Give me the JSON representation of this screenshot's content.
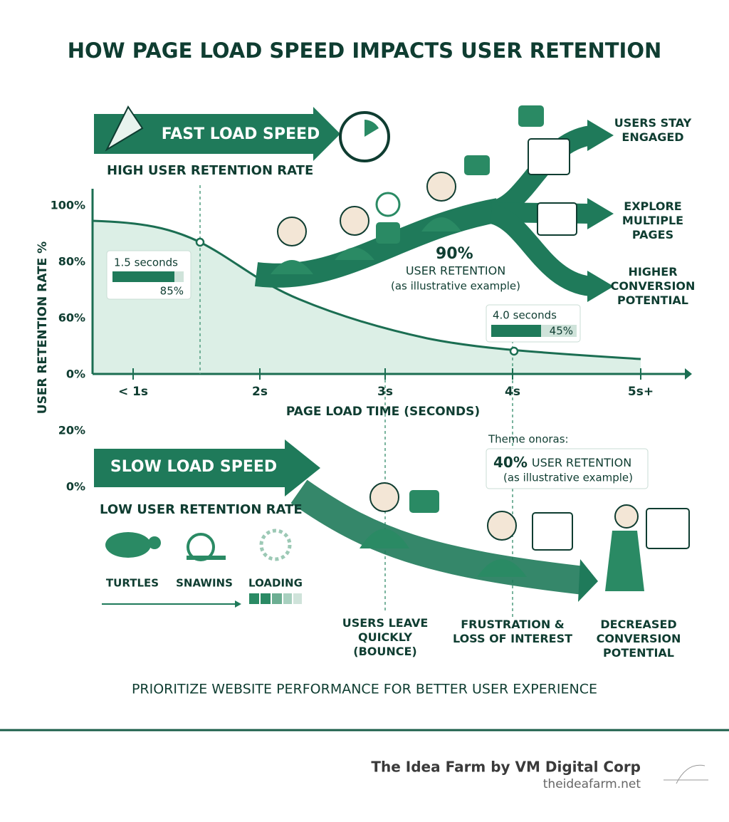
{
  "title": "HOW PAGE LOAD SPEED IMPACTS USER RETENTION",
  "fast": {
    "banner": "FAST LOAD SPEED",
    "subtitle": "HIGH USER RETENTION RATE",
    "retention": {
      "value": "90%",
      "label": "USER RETENTION",
      "note": "(as illustrative example)"
    },
    "outcomes": [
      [
        "USERS STAY",
        "ENGAGED"
      ],
      [
        "EXPLORE",
        "MULTIPLE",
        "PAGES"
      ],
      [
        "HIGHER",
        "CONVERSION",
        "POTENTIAL"
      ]
    ]
  },
  "graph": {
    "y_axis_title": "USER RETENTION RATE %",
    "y_labels": [
      "100%",
      "80%",
      "60%",
      "0%",
      "20%",
      "0%"
    ],
    "x_labels": [
      "< 1s",
      "2s",
      "3s",
      "4s",
      "5s+"
    ],
    "x_axis_title": "PAGE LOAD TIME (SECONDS)",
    "callouts": [
      {
        "time": "1.5 seconds",
        "value": "85%"
      },
      {
        "time": "4.0 seconds",
        "value": "45%"
      }
    ]
  },
  "slow": {
    "banner": "SLOW LOAD SPEED",
    "subtitle": "LOW USER RETENTION RATE",
    "icons": [
      "TURTLES",
      "SNAWINS",
      "LOADING"
    ],
    "theme_label": "Theme onoras:",
    "retention": {
      "value": "40%",
      "label": "USER RETENTION",
      "note": "(as illustrative example)"
    },
    "outcomes": [
      [
        "USERS LEAVE",
        "QUICKLY",
        "(BOUNCE)"
      ],
      [
        "FRUSTRATION &",
        "LOSS OF INTEREST"
      ],
      [
        "DECREASED",
        "CONVERSION",
        "POTENTIAL"
      ]
    ]
  },
  "tagline": "PRIORITIZE WEBSITE PERFORMANCE FOR BETTER USER EXPERIENCE",
  "footer": {
    "brand": "The Idea Farm by VM Digital Corp",
    "url": "theideafarm.net"
  }
}
